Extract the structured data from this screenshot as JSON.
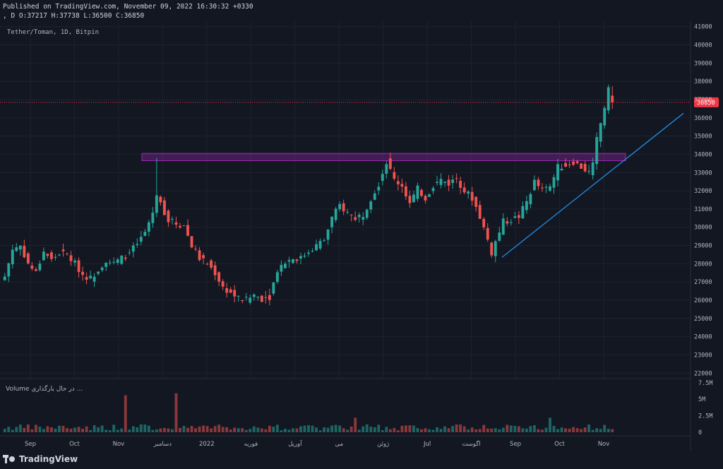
{
  "header": {
    "published": "Published on TradingView.com, November 09, 2022 16:30:32 +0330",
    "ohlc": ", D O:37217 H:37738 L:36500 C:36850"
  },
  "symbol_label": "Tether/Toman, 1D, Bitpin",
  "volume_label": "Volume در حال بارگذاری ...",
  "brand": "TradingView",
  "colors": {
    "background": "#131722",
    "up": "#26a69a",
    "down": "#ef5350",
    "zone": "#9c27b0",
    "trendline": "#2196f3",
    "price_tag": "#f23645",
    "grid": "#1e222d",
    "text": "#b2b5be"
  },
  "chart_data": {
    "type": "candlestick",
    "price_axis": {
      "ticks": [
        22000,
        23000,
        24000,
        25000,
        26000,
        27000,
        28000,
        29000,
        30000,
        31000,
        32000,
        33000,
        34000,
        35000,
        36000,
        37000,
        38000,
        39000,
        40000,
        41000
      ],
      "range": [
        21700,
        41300
      ]
    },
    "volume_axis": {
      "ticks": [
        0,
        2500000,
        5000000,
        7500000
      ],
      "tick_labels": [
        "0",
        "2.5M",
        "5M",
        "7.5M"
      ],
      "range": [
        0,
        7700000
      ]
    },
    "time_axis": {
      "labels": [
        "Sep",
        "Oct",
        "Nov",
        "دسامبر",
        "2022",
        "فوریه",
        "آوریل",
        "می",
        "ژوئن",
        "Jul",
        "اگوست",
        "Sep",
        "Oct",
        "Nov"
      ]
    },
    "last_price": 36850,
    "last_ohlc": {
      "open": 37217,
      "high": 37738,
      "low": 36500,
      "close": 36850
    },
    "resistance_zone": {
      "low": 33650,
      "high": 34050
    },
    "trendline": {
      "from_price": 28350,
      "to_price": 36250
    },
    "price_path": [
      [
        0,
        27300
      ],
      [
        2,
        28800
      ],
      [
        4,
        29000
      ],
      [
        6,
        28000
      ],
      [
        8,
        27500
      ],
      [
        10,
        28700
      ],
      [
        12,
        28200
      ],
      [
        14,
        28600
      ],
      [
        16,
        28500
      ],
      [
        18,
        28000
      ],
      [
        20,
        27400
      ],
      [
        22,
        27200
      ],
      [
        24,
        27700
      ],
      [
        26,
        28200
      ],
      [
        28,
        28000
      ],
      [
        30,
        28300
      ],
      [
        32,
        28600
      ],
      [
        34,
        29100
      ],
      [
        36,
        29700
      ],
      [
        38,
        30800
      ],
      [
        39,
        31800
      ],
      [
        40,
        31300
      ],
      [
        42,
        30400
      ],
      [
        44,
        30200
      ],
      [
        46,
        30100
      ],
      [
        48,
        29000
      ],
      [
        50,
        28300
      ],
      [
        52,
        28000
      ],
      [
        54,
        27500
      ],
      [
        56,
        26700
      ],
      [
        58,
        26400
      ],
      [
        60,
        26100
      ],
      [
        62,
        26000
      ],
      [
        64,
        26300
      ],
      [
        66,
        26100
      ],
      [
        68,
        26200
      ],
      [
        70,
        27700
      ],
      [
        72,
        28100
      ],
      [
        74,
        28300
      ],
      [
        76,
        28300
      ],
      [
        78,
        28700
      ],
      [
        80,
        29000
      ],
      [
        82,
        29300
      ],
      [
        84,
        30500
      ],
      [
        86,
        31200
      ],
      [
        88,
        30800
      ],
      [
        90,
        30500
      ],
      [
        92,
        30700
      ],
      [
        94,
        31600
      ],
      [
        96,
        32400
      ],
      [
        98,
        33600
      ],
      [
        100,
        32600
      ],
      [
        102,
        32300
      ],
      [
        104,
        31300
      ],
      [
        106,
        32100
      ],
      [
        108,
        31600
      ],
      [
        110,
        32300
      ],
      [
        112,
        32600
      ],
      [
        114,
        32400
      ],
      [
        116,
        32700
      ],
      [
        118,
        32000
      ],
      [
        120,
        31600
      ],
      [
        122,
        30600
      ],
      [
        124,
        29300
      ],
      [
        125,
        28600
      ],
      [
        126,
        29200
      ],
      [
        128,
        30300
      ],
      [
        130,
        30400
      ],
      [
        132,
        30600
      ],
      [
        134,
        31400
      ],
      [
        136,
        32500
      ],
      [
        138,
        32000
      ],
      [
        140,
        32200
      ],
      [
        142,
        33300
      ],
      [
        144,
        33400
      ],
      [
        146,
        33600
      ],
      [
        148,
        33300
      ],
      [
        150,
        33000
      ],
      [
        151,
        33400
      ],
      [
        152,
        34800
      ],
      [
        153,
        35700
      ],
      [
        154,
        36600
      ],
      [
        155,
        37500
      ],
      [
        156,
        36850
      ]
    ],
    "volume_spikes": [
      [
        31,
        5600000
      ],
      [
        44,
        5900000
      ],
      [
        90,
        2200000
      ],
      [
        140,
        2200000
      ]
    ]
  }
}
